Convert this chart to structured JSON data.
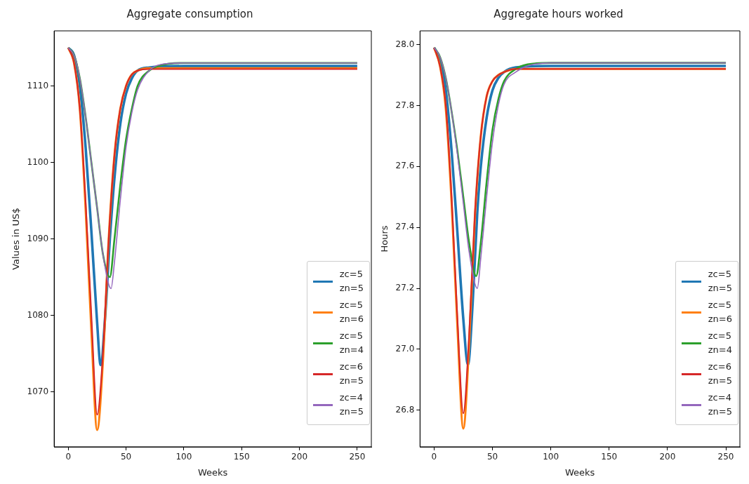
{
  "chart_data": [
    {
      "type": "line",
      "title": "Aggregate consumption",
      "xlabel": "Weeks",
      "ylabel": "Values in US$",
      "xlim": [
        -12.2,
        262.2
      ],
      "xticks": [
        0,
        50,
        100,
        150,
        200,
        250
      ],
      "ylim": [
        1062.8,
        1117.2
      ],
      "yticks": [
        1070,
        1080,
        1090,
        1100,
        1110
      ],
      "grid": false,
      "legend": "bottom right",
      "marker": "none",
      "line_style": "solid",
      "series": [
        {
          "name": "zc=5\nzn=5",
          "color": "#1f77b4",
          "x": [
            0,
            5,
            10,
            15,
            20,
            25,
            28,
            32,
            36,
            40,
            45,
            50,
            55,
            60,
            70,
            100,
            250
          ],
          "values": [
            1115,
            1114,
            1110,
            1102,
            1091,
            1079,
            1073.5,
            1080,
            1090,
            1098,
            1105,
            1109,
            1111,
            1112,
            1112.4,
            1112.6,
            1112.6
          ]
        },
        {
          "name": "zc=5\nzn=6",
          "color": "#ff7f0e",
          "x": [
            0,
            5,
            10,
            15,
            20,
            25,
            30,
            35,
            40,
            45,
            50,
            55,
            60,
            70,
            250
          ],
          "values": [
            1115,
            1113,
            1107,
            1094,
            1078,
            1065,
            1074,
            1090,
            1101,
            1107,
            1110,
            1111.5,
            1112,
            1112.3,
            1112.3
          ]
        },
        {
          "name": "zc=5\nzn=4",
          "color": "#2ca02c",
          "x": [
            0,
            5,
            10,
            15,
            20,
            25,
            30,
            36,
            40,
            45,
            50,
            55,
            60,
            70,
            80,
            100,
            250
          ],
          "values": [
            1115,
            1114,
            1111,
            1106,
            1100,
            1094,
            1088,
            1085,
            1090,
            1097,
            1103,
            1107,
            1110,
            1112,
            1112.7,
            1113,
            1113
          ]
        },
        {
          "name": "zc=6\nzn=5",
          "color": "#d62728",
          "x": [
            0,
            5,
            10,
            15,
            20,
            25,
            30,
            35,
            40,
            45,
            50,
            55,
            60,
            70,
            100,
            250
          ],
          "values": [
            1115,
            1113,
            1107,
            1095,
            1080,
            1067,
            1075,
            1090,
            1101,
            1107,
            1110,
            1111.5,
            1112,
            1112.2,
            1112.2,
            1112.2
          ]
        },
        {
          "name": "zc=4\nzn=5",
          "color": "#9467bd",
          "x": [
            0,
            5,
            10,
            15,
            20,
            25,
            30,
            37,
            40,
            45,
            50,
            55,
            60,
            70,
            80,
            100,
            250
          ],
          "values": [
            1115,
            1114,
            1111,
            1106,
            1100,
            1094,
            1088,
            1083.5,
            1087,
            1095,
            1102,
            1106.5,
            1109.5,
            1112,
            1112.8,
            1113,
            1113
          ]
        }
      ]
    },
    {
      "type": "line",
      "title": "Aggregate hours worked",
      "xlabel": "Weeks",
      "ylabel": "Hours",
      "xlim": [
        -12.1,
        262
      ],
      "xticks": [
        0,
        50,
        100,
        150,
        200,
        250
      ],
      "ylim": [
        26.68,
        28.045
      ],
      "yticks": [
        {
          "value": 26.8,
          "label": "26.8"
        },
        {
          "value": 27,
          "label": "27.0"
        },
        {
          "value": 27.2,
          "label": "27.2"
        },
        {
          "value": 27.4,
          "label": "27.4"
        },
        {
          "value": 27.6,
          "label": "27.6"
        },
        {
          "value": 27.8,
          "label": "27.8"
        },
        {
          "value": 28,
          "label": "28.0"
        }
      ],
      "grid": false,
      "legend": "bottom right",
      "marker": "none",
      "line_style": "solid",
      "series": [
        {
          "name": "zc=5\nzn=5",
          "color": "#1f77b4",
          "x": [
            0,
            5,
            10,
            15,
            20,
            25,
            29,
            33,
            37,
            40,
            45,
            50,
            55,
            60,
            70,
            100,
            250
          ],
          "values": [
            27.99,
            27.95,
            27.85,
            27.65,
            27.38,
            27.1,
            26.95,
            27.15,
            27.45,
            27.6,
            27.76,
            27.85,
            27.89,
            27.91,
            27.925,
            27.93,
            27.93
          ]
        },
        {
          "name": "zc=5\nzn=6",
          "color": "#ff7f0e",
          "x": [
            0,
            5,
            10,
            15,
            20,
            25,
            30,
            35,
            40,
            45,
            50,
            55,
            60,
            70,
            250
          ],
          "values": [
            27.99,
            27.93,
            27.79,
            27.48,
            27.07,
            26.74,
            27.02,
            27.44,
            27.7,
            27.83,
            27.88,
            27.9,
            27.91,
            27.92,
            27.92
          ]
        },
        {
          "name": "zc=5\nzn=4",
          "color": "#2ca02c",
          "x": [
            0,
            5,
            10,
            15,
            20,
            25,
            30,
            36,
            40,
            45,
            50,
            55,
            60,
            70,
            80,
            100,
            250
          ],
          "values": [
            27.99,
            27.96,
            27.89,
            27.78,
            27.65,
            27.5,
            27.35,
            27.24,
            27.35,
            27.55,
            27.72,
            27.82,
            27.88,
            27.92,
            27.935,
            27.94,
            27.94
          ]
        },
        {
          "name": "zc=6\nzn=5",
          "color": "#d62728",
          "x": [
            0,
            5,
            10,
            15,
            20,
            25,
            30,
            35,
            40,
            45,
            50,
            55,
            60,
            70,
            250
          ],
          "values": [
            27.99,
            27.93,
            27.8,
            27.5,
            27.1,
            26.79,
            27.05,
            27.45,
            27.7,
            27.83,
            27.88,
            27.9,
            27.91,
            27.92,
            27.92
          ]
        },
        {
          "name": "zc=4\nzn=5",
          "color": "#9467bd",
          "x": [
            0,
            5,
            10,
            15,
            20,
            25,
            30,
            37,
            40,
            45,
            50,
            55,
            60,
            70,
            80,
            100,
            250
          ],
          "values": [
            27.99,
            27.96,
            27.89,
            27.78,
            27.64,
            27.48,
            27.32,
            27.2,
            27.3,
            27.5,
            27.68,
            27.8,
            27.87,
            27.91,
            27.93,
            27.94,
            27.94
          ]
        }
      ]
    }
  ]
}
